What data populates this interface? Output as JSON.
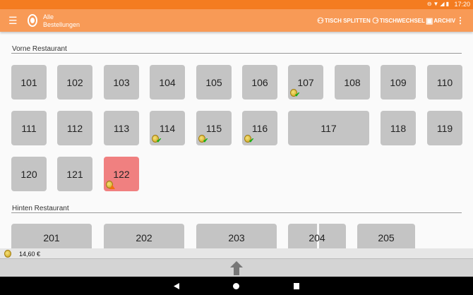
{
  "status": {
    "time": "17:20"
  },
  "appbar": {
    "title_line1": "Alle",
    "title_line2": "Bestellungen",
    "actions": [
      {
        "label": "TISCH SPLITTEN",
        "icon": "split-table-icon"
      },
      {
        "label": "TISCHWECHSEL",
        "icon": "change-table-icon"
      },
      {
        "label": "ARCHIV",
        "icon": "archive-icon"
      }
    ]
  },
  "sections": [
    {
      "name": "Vorne Restaurant",
      "tables": [
        {
          "label": "101"
        },
        {
          "label": "102"
        },
        {
          "label": "103"
        },
        {
          "label": "104"
        },
        {
          "label": "105"
        },
        {
          "label": "106"
        },
        {
          "label": "107",
          "badge": "paid"
        },
        {
          "label": "108"
        },
        {
          "label": "109"
        },
        {
          "label": "110"
        },
        {
          "label": "111"
        },
        {
          "label": "112"
        },
        {
          "label": "113"
        },
        {
          "label": "114",
          "badge": "paid"
        },
        {
          "label": "115",
          "badge": "paid"
        },
        {
          "label": "116",
          "badge": "paid"
        },
        {
          "label": "117"
        },
        {
          "label": "118"
        },
        {
          "label": "119"
        },
        {
          "label": "120"
        },
        {
          "label": "121"
        },
        {
          "label": "122",
          "badge": "warning",
          "state": "occupied"
        }
      ]
    },
    {
      "name": "Hinten Restaurant",
      "tables": [
        {
          "label": "201"
        },
        {
          "label": "202"
        },
        {
          "label": "203"
        },
        {
          "label": "204",
          "state": "split"
        },
        {
          "label": "205"
        }
      ]
    }
  ],
  "summary": {
    "total": "14,60 €"
  },
  "colors": {
    "statusbar": "#f47c20",
    "appbar": "#f89a56",
    "tile": "#c4c4c4",
    "occupied": "#f08080"
  }
}
